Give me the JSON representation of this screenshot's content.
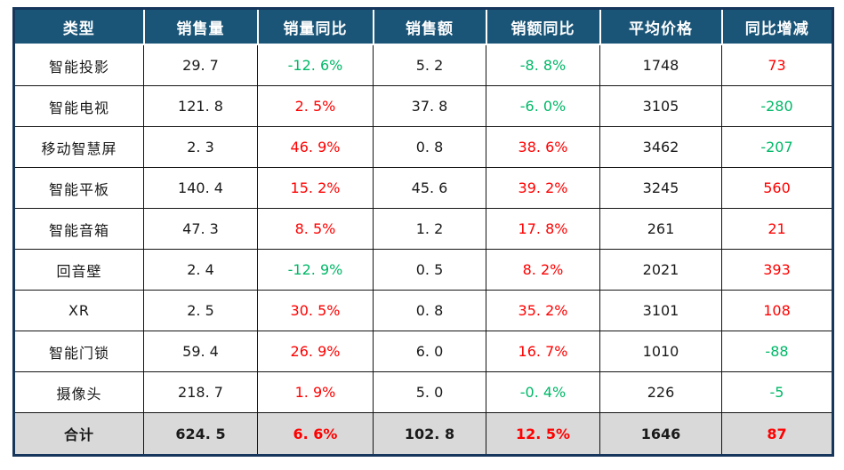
{
  "colors": {
    "header_bg": "#1A5577",
    "header_text": "#FFFFFF",
    "grid_line": "#141414",
    "outer_border": "#16365C",
    "total_row_bg": "#D9D9D9",
    "positive_value": "#FF0000",
    "negative_value": "#00B868",
    "body_text": "#1A1A1A",
    "page_bg": "#FFFFFF"
  },
  "table": {
    "headers": [
      "类型",
      "销售量",
      "销量同比",
      "销售额",
      "销额同比",
      "平均价格",
      "同比增减"
    ],
    "rows": [
      {
        "label": "智能投影",
        "cells": [
          {
            "t": "29. 7",
            "c": "plain"
          },
          {
            "t": "-12. 6%",
            "c": "neg"
          },
          {
            "t": "5. 2",
            "c": "plain"
          },
          {
            "t": "-8. 8%",
            "c": "neg"
          },
          {
            "t": "1748",
            "c": "plain"
          },
          {
            "t": "73",
            "c": "pos"
          }
        ]
      },
      {
        "label": "智能电视",
        "cells": [
          {
            "t": "121. 8",
            "c": "plain"
          },
          {
            "t": "2. 5%",
            "c": "pos"
          },
          {
            "t": "37. 8",
            "c": "plain"
          },
          {
            "t": "-6. 0%",
            "c": "neg"
          },
          {
            "t": "3105",
            "c": "plain"
          },
          {
            "t": "-280",
            "c": "neg"
          }
        ]
      },
      {
        "label": "移动智慧屏",
        "cells": [
          {
            "t": "2. 3",
            "c": "plain"
          },
          {
            "t": "46. 9%",
            "c": "pos"
          },
          {
            "t": "0. 8",
            "c": "plain"
          },
          {
            "t": "38. 6%",
            "c": "pos"
          },
          {
            "t": "3462",
            "c": "plain"
          },
          {
            "t": "-207",
            "c": "neg"
          }
        ]
      },
      {
        "label": "智能平板",
        "cells": [
          {
            "t": "140. 4",
            "c": "plain"
          },
          {
            "t": "15. 2%",
            "c": "pos"
          },
          {
            "t": "45. 6",
            "c": "plain"
          },
          {
            "t": "39. 2%",
            "c": "pos"
          },
          {
            "t": "3245",
            "c": "plain"
          },
          {
            "t": "560",
            "c": "pos"
          }
        ]
      },
      {
        "label": "智能音箱",
        "cells": [
          {
            "t": "47. 3",
            "c": "plain"
          },
          {
            "t": "8. 5%",
            "c": "pos"
          },
          {
            "t": "1. 2",
            "c": "plain"
          },
          {
            "t": "17. 8%",
            "c": "pos"
          },
          {
            "t": "261",
            "c": "plain"
          },
          {
            "t": "21",
            "c": "pos"
          }
        ]
      },
      {
        "label": "回音壁",
        "cells": [
          {
            "t": "2. 4",
            "c": "plain"
          },
          {
            "t": "-12. 9%",
            "c": "neg"
          },
          {
            "t": "0. 5",
            "c": "plain"
          },
          {
            "t": "8. 2%",
            "c": "pos"
          },
          {
            "t": "2021",
            "c": "plain"
          },
          {
            "t": "393",
            "c": "pos"
          }
        ]
      },
      {
        "label": "XR",
        "cells": [
          {
            "t": "2. 5",
            "c": "plain"
          },
          {
            "t": "30. 5%",
            "c": "pos"
          },
          {
            "t": "0. 8",
            "c": "plain"
          },
          {
            "t": "35. 2%",
            "c": "pos"
          },
          {
            "t": "3101",
            "c": "plain"
          },
          {
            "t": "108",
            "c": "pos"
          }
        ]
      },
      {
        "label": "智能门锁",
        "cells": [
          {
            "t": "59. 4",
            "c": "plain"
          },
          {
            "t": "26. 9%",
            "c": "pos"
          },
          {
            "t": "6. 0",
            "c": "plain"
          },
          {
            "t": "16. 7%",
            "c": "pos"
          },
          {
            "t": "1010",
            "c": "plain"
          },
          {
            "t": "-88",
            "c": "neg"
          }
        ]
      },
      {
        "label": "摄像头",
        "cells": [
          {
            "t": "218. 7",
            "c": "plain"
          },
          {
            "t": "1. 9%",
            "c": "pos"
          },
          {
            "t": "5. 0",
            "c": "plain"
          },
          {
            "t": "-0. 4%",
            "c": "neg"
          },
          {
            "t": "226",
            "c": "plain"
          },
          {
            "t": "-5",
            "c": "neg"
          }
        ]
      }
    ],
    "total": {
      "label": "合计",
      "cells": [
        {
          "t": "624. 5",
          "c": "plain"
        },
        {
          "t": "6. 6%",
          "c": "pos"
        },
        {
          "t": "102. 8",
          "c": "plain"
        },
        {
          "t": "12. 5%",
          "c": "pos"
        },
        {
          "t": "1646",
          "c": "plain"
        },
        {
          "t": "87",
          "c": "pos"
        }
      ]
    }
  },
  "chart_data": {
    "type": "table",
    "columns": [
      "类型",
      "销售量",
      "销量同比",
      "销售额",
      "销额同比",
      "平均价格",
      "同比增减"
    ],
    "categories": [
      "智能投影",
      "智能电视",
      "移动智慧屏",
      "智能平板",
      "智能音箱",
      "回音壁",
      "XR",
      "智能门锁",
      "摄像头"
    ],
    "series": [
      {
        "name": "销售量",
        "values": [
          29.7,
          121.8,
          2.3,
          140.4,
          47.3,
          2.4,
          2.5,
          59.4,
          218.7
        ],
        "total": 624.5
      },
      {
        "name": "销量同比(%)",
        "values": [
          -12.6,
          2.5,
          46.9,
          15.2,
          8.5,
          -12.9,
          30.5,
          26.9,
          1.9
        ],
        "total": 6.6
      },
      {
        "name": "销售额",
        "values": [
          5.2,
          37.8,
          0.8,
          45.6,
          1.2,
          0.5,
          0.8,
          6.0,
          5.0
        ],
        "total": 102.8
      },
      {
        "name": "销额同比(%)",
        "values": [
          -8.8,
          -6.0,
          38.6,
          39.2,
          17.8,
          8.2,
          35.2,
          16.7,
          -0.4
        ],
        "total": 12.5
      },
      {
        "name": "平均价格",
        "values": [
          1748,
          3105,
          3462,
          3245,
          261,
          2021,
          3101,
          1010,
          226
        ],
        "total": 1646
      },
      {
        "name": "同比增减",
        "values": [
          73,
          -280,
          -207,
          560,
          21,
          393,
          108,
          -88,
          -5
        ],
        "total": 87
      }
    ],
    "total_row_label": "合计",
    "value_color_rule": "同比 columns: negative = green, positive = red"
  }
}
